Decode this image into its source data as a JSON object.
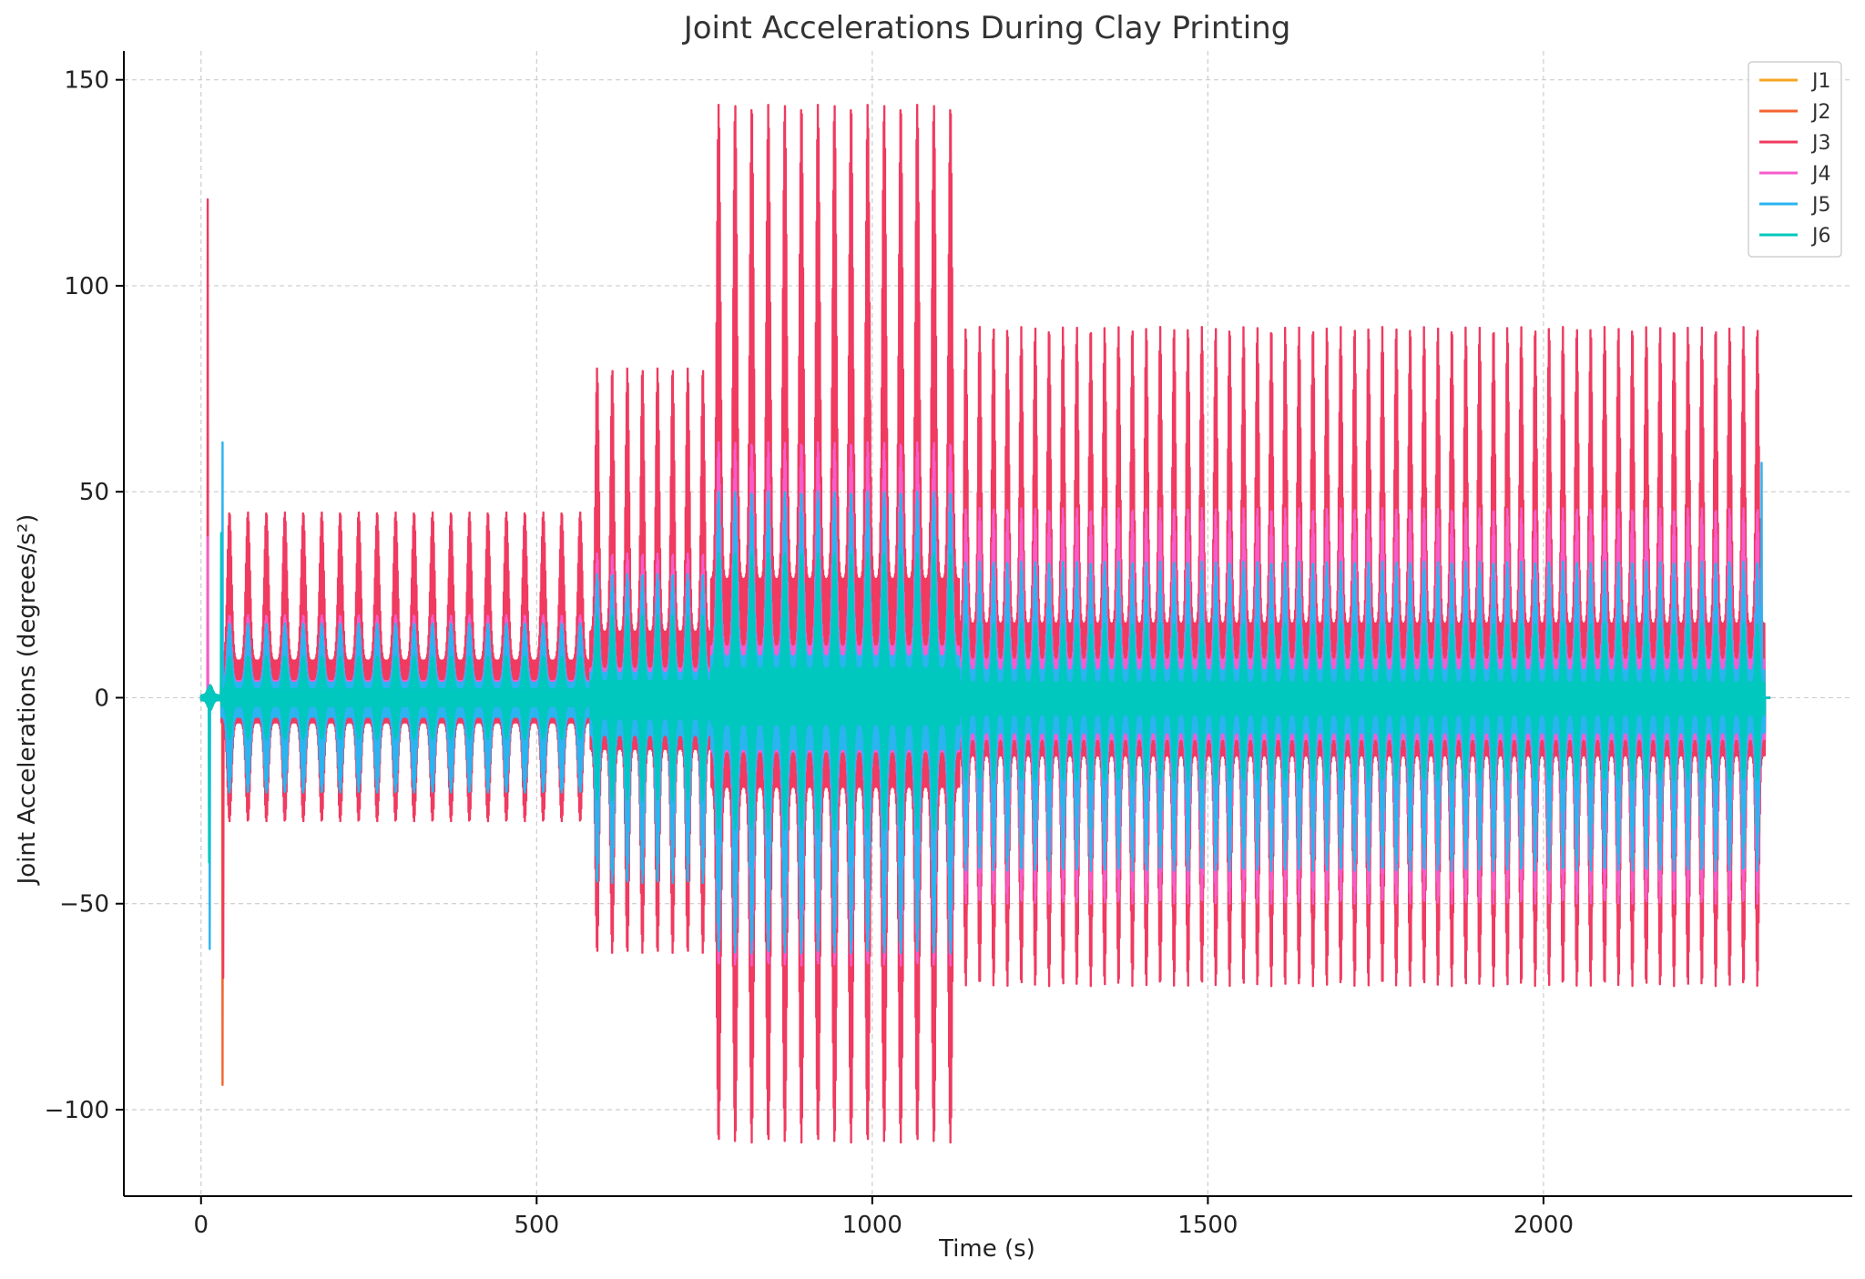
{
  "chart_data": {
    "type": "line",
    "title": "Joint Accelerations During Clay Printing",
    "xlabel": "Time (s)",
    "ylabel": "Joint Accelerations (degrees/s²)",
    "xlim": [
      -115,
      2460
    ],
    "ylim": [
      -121,
      157
    ],
    "x_ticks": [
      0,
      500,
      1000,
      1500,
      2000
    ],
    "x_tick_labels": [
      "0",
      "500",
      "1000",
      "1500",
      "2000"
    ],
    "y_ticks": [
      -100,
      -50,
      0,
      50,
      100,
      150
    ],
    "y_tick_labels": [
      "−100",
      "−50",
      "0",
      "50",
      "100",
      "150"
    ],
    "grid": true,
    "legend_position": "top-right",
    "series": [
      {
        "name": "J1",
        "color": "#f5a623",
        "segments": [
          {
            "x0": 0,
            "x1": 30,
            "cycles": 1,
            "max": 3,
            "min": -3
          },
          {
            "x0": 30,
            "x1": 580,
            "cycles": 20,
            "max": 20,
            "min": -22
          },
          {
            "x0": 580,
            "x1": 760,
            "cycles": 8,
            "max": 33,
            "min": -40
          },
          {
            "x0": 760,
            "x1": 1130,
            "cycles": 15,
            "max": 55,
            "min": -70
          },
          {
            "x0": 1130,
            "x1": 2330,
            "cycles": 58,
            "max": 45,
            "min": -57
          }
        ]
      },
      {
        "name": "J2",
        "color": "#f26430",
        "segments": [
          {
            "x0": 0,
            "x1": 30,
            "cycles": 1,
            "max": 3,
            "min": -3
          },
          {
            "x0": 30,
            "x1": 580,
            "cycles": 20,
            "max": 22,
            "min": -25
          },
          {
            "x0": 580,
            "x1": 760,
            "cycles": 8,
            "max": 35,
            "min": -42
          },
          {
            "x0": 760,
            "x1": 1130,
            "cycles": 15,
            "max": 58,
            "min": -72
          },
          {
            "x0": 1130,
            "x1": 2330,
            "cycles": 58,
            "max": 46,
            "min": -58
          }
        ],
        "spikes": [
          {
            "x": 32,
            "y": -94
          }
        ]
      },
      {
        "name": "J3",
        "color": "#f03a5f",
        "segments": [
          {
            "x0": 0,
            "x1": 30,
            "cycles": 1,
            "max": 3,
            "min": -3
          },
          {
            "x0": 30,
            "x1": 580,
            "cycles": 20,
            "max": 45,
            "min": -30
          },
          {
            "x0": 580,
            "x1": 760,
            "cycles": 8,
            "max": 80,
            "min": -62
          },
          {
            "x0": 760,
            "x1": 1130,
            "cycles": 15,
            "max": 144,
            "min": -108
          },
          {
            "x0": 1130,
            "x1": 2330,
            "cycles": 58,
            "max": 90,
            "min": -70
          }
        ],
        "spikes": [
          {
            "x": 10,
            "y": 121
          },
          {
            "x": 33,
            "y": -68
          }
        ]
      },
      {
        "name": "J4",
        "color": "#f55ccc",
        "segments": [
          {
            "x0": 0,
            "x1": 30,
            "cycles": 1,
            "max": 3,
            "min": -3
          },
          {
            "x0": 30,
            "x1": 580,
            "cycles": 20,
            "max": 20,
            "min": -22
          },
          {
            "x0": 580,
            "x1": 760,
            "cycles": 8,
            "max": 35,
            "min": -40
          },
          {
            "x0": 760,
            "x1": 1130,
            "cycles": 15,
            "max": 62,
            "min": -65
          },
          {
            "x0": 1130,
            "x1": 2330,
            "cycles": 58,
            "max": 46,
            "min": -50
          }
        ],
        "spikes": [
          {
            "x": 10,
            "y": 39
          }
        ]
      },
      {
        "name": "J5",
        "color": "#2ab4f0",
        "segments": [
          {
            "x0": 0,
            "x1": 30,
            "cycles": 1,
            "max": 3,
            "min": -3
          },
          {
            "x0": 30,
            "x1": 580,
            "cycles": 20,
            "max": 18,
            "min": -23
          },
          {
            "x0": 580,
            "x1": 760,
            "cycles": 8,
            "max": 30,
            "min": -45
          },
          {
            "x0": 760,
            "x1": 1130,
            "cycles": 15,
            "max": 50,
            "min": -62
          },
          {
            "x0": 1130,
            "x1": 2330,
            "cycles": 58,
            "max": 33,
            "min": -42
          }
        ],
        "spikes": [
          {
            "x": 13,
            "y": -61
          },
          {
            "x": 32,
            "y": 62
          },
          {
            "x": 2325,
            "y": 57
          }
        ]
      },
      {
        "name": "J6",
        "color": "#00c8be",
        "segments": [
          {
            "x0": 0,
            "x1": 30,
            "cycles": 1,
            "max": 3,
            "min": -3
          },
          {
            "x0": 30,
            "x1": 580,
            "cycles": 20,
            "max": 10,
            "min": -10
          },
          {
            "x0": 580,
            "x1": 760,
            "cycles": 8,
            "max": 20,
            "min": -25
          },
          {
            "x0": 760,
            "x1": 1130,
            "cycles": 15,
            "max": 35,
            "min": -32
          },
          {
            "x0": 1130,
            "x1": 2330,
            "cycles": 58,
            "max": 18,
            "min": -20
          }
        ],
        "spikes": [
          {
            "x": 12,
            "y": -40
          },
          {
            "x": 30,
            "y": 40
          }
        ]
      }
    ]
  }
}
